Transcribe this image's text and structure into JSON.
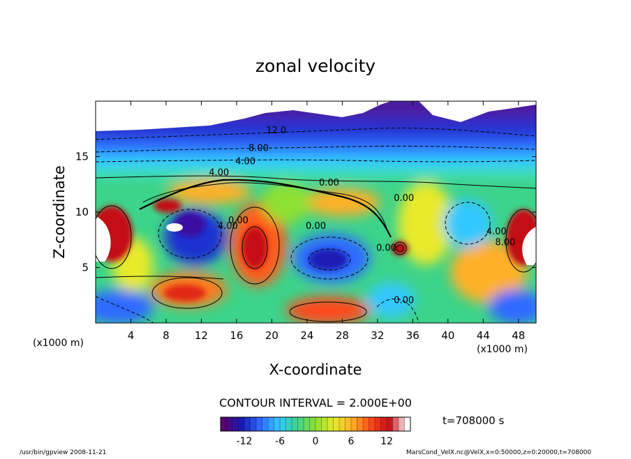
{
  "chart_data": {
    "type": "heatmap",
    "title": "zonal velocity",
    "xlabel": "X-coordinate",
    "ylabel": "Z-coordinate",
    "x_unit_left": "(x1000 m)",
    "x_unit_right": "(x1000 m)",
    "xlim": [
      0,
      50
    ],
    "ylim": [
      0,
      20
    ],
    "x_ticks": [
      4,
      8,
      12,
      16,
      20,
      24,
      28,
      32,
      36,
      40,
      44,
      48
    ],
    "y_ticks": [
      5,
      10,
      15
    ],
    "contour_interval_text": "CONTOUR INTERVAL = 2.000E+00",
    "time_text": "t=708000 s",
    "colorbar": {
      "range": [
        -16,
        16
      ],
      "ticks": [
        -12,
        -6,
        0,
        6,
        12
      ],
      "colors": [
        "#5a0070",
        "#1a1ab4",
        "#2f6bff",
        "#31c8ff",
        "#3cd38a",
        "#8ee030",
        "#e8ea2c",
        "#ffb026",
        "#ff4a1a",
        "#c40f18",
        "#ffffff"
      ]
    },
    "contour_labels": [
      {
        "text": "12.0",
        "x": 20.5,
        "y": 17.1
      },
      {
        "text": "8.00",
        "x": 18.5,
        "y": 15.5
      },
      {
        "text": "4.00",
        "x": 17.0,
        "y": 14.3
      },
      {
        "text": "4.00",
        "x": 14.0,
        "y": 13.3
      },
      {
        "text": "0.00",
        "x": 26.5,
        "y": 12.4
      },
      {
        "text": "0.00",
        "x": 35.0,
        "y": 11.0
      },
      {
        "text": "0.00",
        "x": 25.0,
        "y": 8.5
      },
      {
        "text": "4.00",
        "x": 15.0,
        "y": 8.5
      },
      {
        "text": "0.00",
        "x": 16.2,
        "y": 9.0
      },
      {
        "text": "0.00",
        "x": 33.0,
        "y": 6.5
      },
      {
        "text": "4.00",
        "x": 45.5,
        "y": 8.0
      },
      {
        "text": "8.00",
        "x": 46.5,
        "y": 7.0
      },
      {
        "text": "0.00",
        "x": 35.0,
        "y": 1.8
      }
    ],
    "footer_left": "/usr/bin/gpview   2008-11-21",
    "footer_right": "MarsCond_VelX.nc@VelX,x=0:50000,z=0:20000,t=708000"
  }
}
